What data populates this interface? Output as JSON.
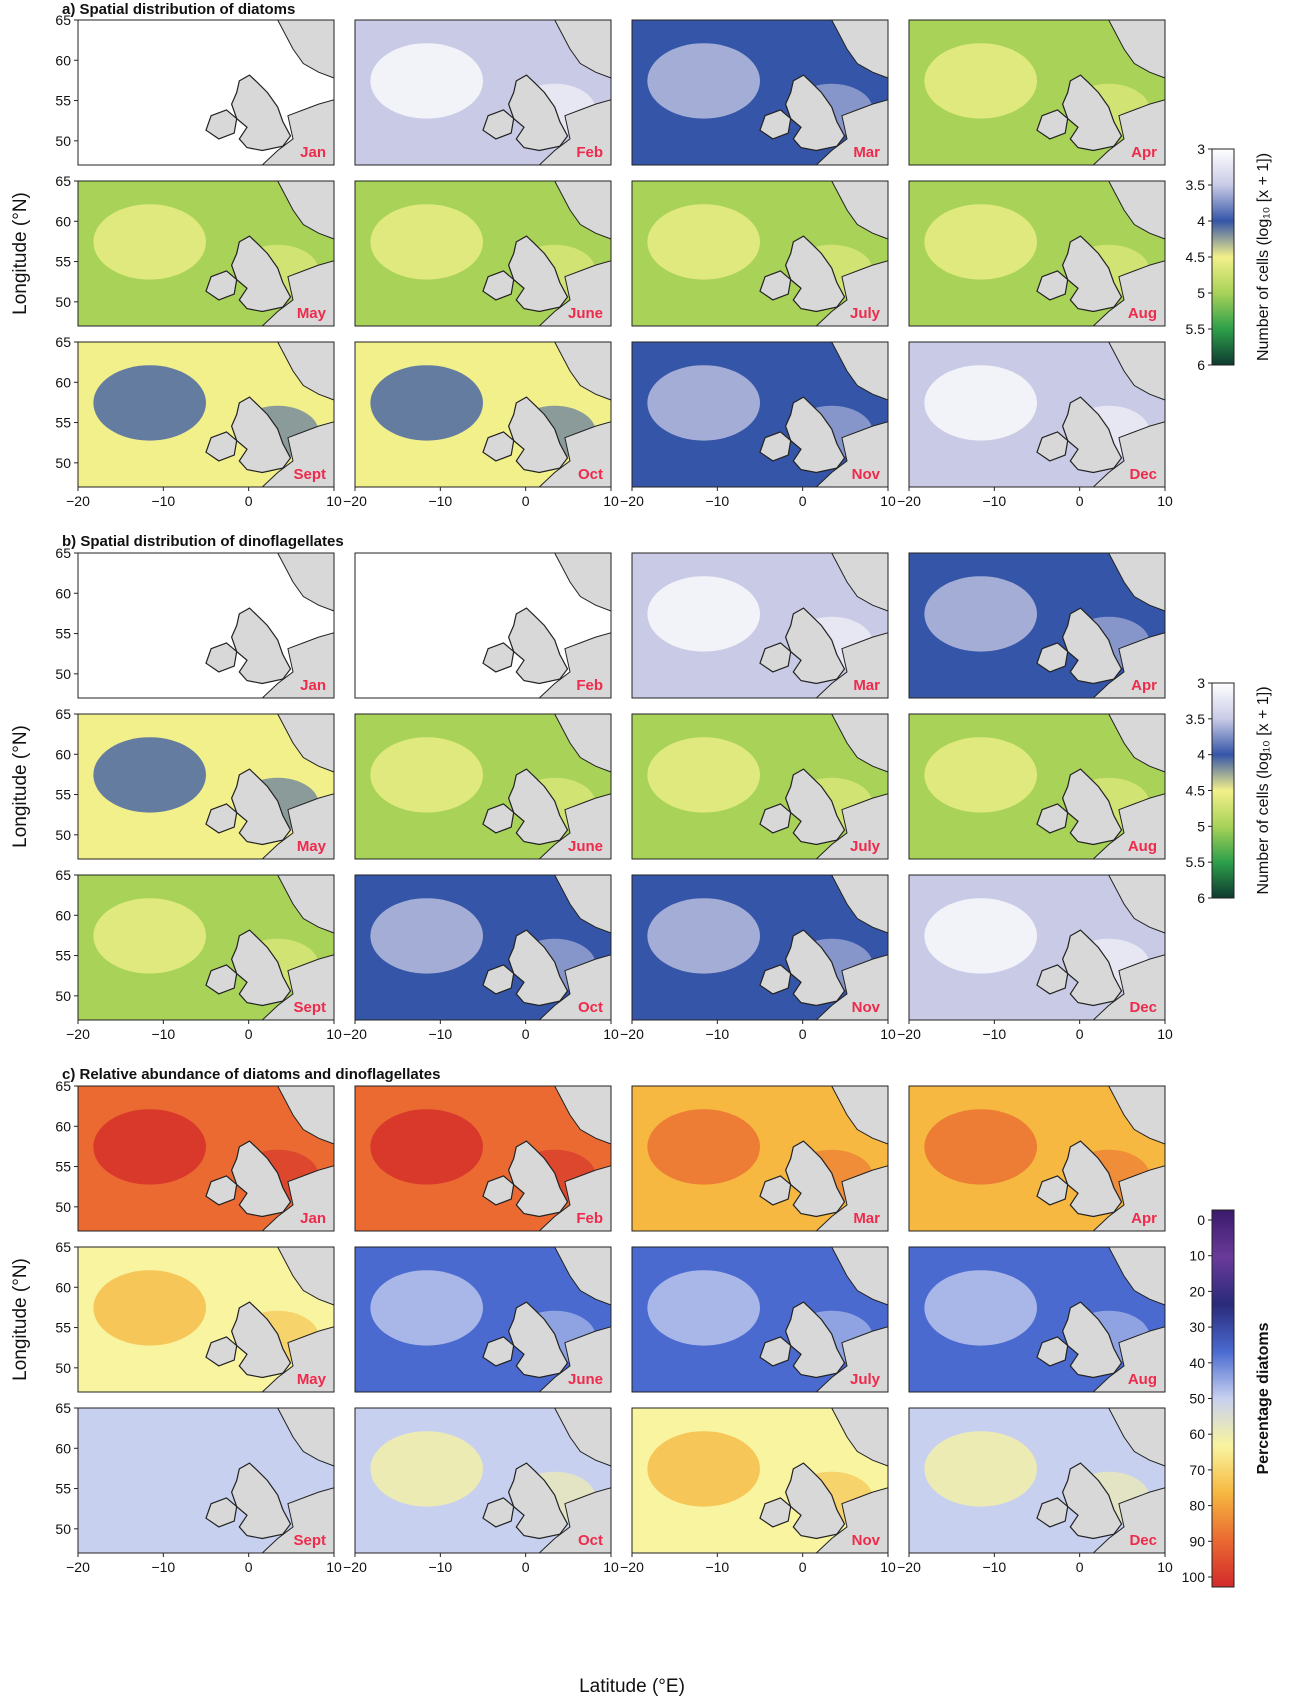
{
  "chart_data": {
    "type": "heatmap",
    "months": [
      "Jan",
      "Feb",
      "Mar",
      "Apr",
      "May",
      "June",
      "July",
      "Aug",
      "Sept",
      "Oct",
      "Nov",
      "Dec"
    ],
    "x_ticks": [
      -20,
      -10,
      0,
      10
    ],
    "y_ticks": [
      65,
      60,
      55,
      50
    ],
    "xlim": [
      -20,
      10
    ],
    "ylim": [
      47,
      65
    ],
    "xlabel": "Latitude (°E)",
    "ylabel": "Longitude (°N)",
    "panels": [
      {
        "id": "a",
        "title": "a) Spatial distribution of diatoms",
        "colorbar_label": "Number of cells (log₁₀ [x + 1])",
        "colorbar_ticks": [
          "3",
          "3.5",
          "4",
          "4.5",
          "5",
          "5.5",
          "6"
        ],
        "colorbar_range": [
          3,
          6
        ],
        "colors": [
          "#ffffff",
          "#c9cbe6",
          "#3555a8",
          "#f2f08a",
          "#a8d258",
          "#2da04a",
          "#0f3a30"
        ],
        "monthly_mean": [
          3.2,
          3.3,
          3.9,
          4.8,
          5.2,
          4.9,
          5.0,
          4.9,
          4.7,
          4.4,
          3.9,
          3.5
        ]
      },
      {
        "id": "b",
        "title": "b) Spatial distribution of dinoflagellates",
        "colorbar_label": "Number of cells (log₁₀ [x + 1])",
        "colorbar_ticks": [
          "3",
          "3.5",
          "4",
          "4.5",
          "5",
          "5.5",
          "6"
        ],
        "colorbar_range": [
          3,
          6
        ],
        "colors": [
          "#ffffff",
          "#c9cbe6",
          "#3555a8",
          "#f2f08a",
          "#a8d258",
          "#2da04a",
          "#0f3a30"
        ],
        "monthly_mean": [
          3.1,
          3.2,
          3.4,
          3.9,
          4.4,
          4.8,
          5.0,
          4.9,
          4.8,
          4.2,
          3.8,
          3.3
        ]
      },
      {
        "id": "c",
        "title": "c) Relative abundance of diatoms and dinoflagellates",
        "colorbar_label": "Percentage diatoms",
        "colorbar_ticks": [
          "0",
          "10",
          "20",
          "30",
          "40",
          "50",
          "60",
          "70",
          "80",
          "90",
          "100"
        ],
        "colorbar_range": [
          0,
          100
        ],
        "colors": [
          "#3a1a6a",
          "#6a3a9a",
          "#2a2a7a",
          "#4a6ad0",
          "#c8d0f0",
          "#f8f4a0",
          "#f6b840",
          "#ea6a32",
          "#d22a2a"
        ],
        "monthly_mean": [
          85,
          82,
          75,
          72,
          60,
          42,
          40,
          42,
          44,
          50,
          60,
          55
        ]
      }
    ]
  }
}
